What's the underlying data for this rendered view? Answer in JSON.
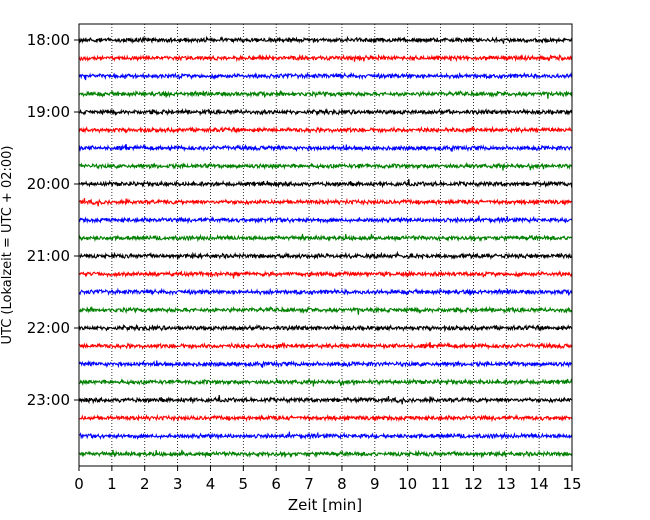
{
  "chart_data": {
    "type": "line",
    "title": "",
    "xlabel": "Zeit  [min]",
    "ylabel": "UTC (Lokalzeit = UTC + 02:00)",
    "xlim": [
      0,
      15
    ],
    "x_ticks": [
      "0",
      "1",
      "2",
      "3",
      "4",
      "5",
      "6",
      "7",
      "8",
      "9",
      "10",
      "11",
      "12",
      "13",
      "14",
      "15"
    ],
    "y_ticks": [
      "18:00",
      "19:00",
      "20:00",
      "21:00",
      "22:00",
      "23:00"
    ],
    "grid": "vertical dotted lines at each minute",
    "trace_interval_min": 15,
    "start_time": "18:00",
    "trace_count": 24,
    "trace_colors": [
      "#000000",
      "#ff0000",
      "#0000ff",
      "#008000"
    ],
    "description_note": "Each row is a 15-minute seismogram trace; colors cycle black, red, blue, green."
  }
}
